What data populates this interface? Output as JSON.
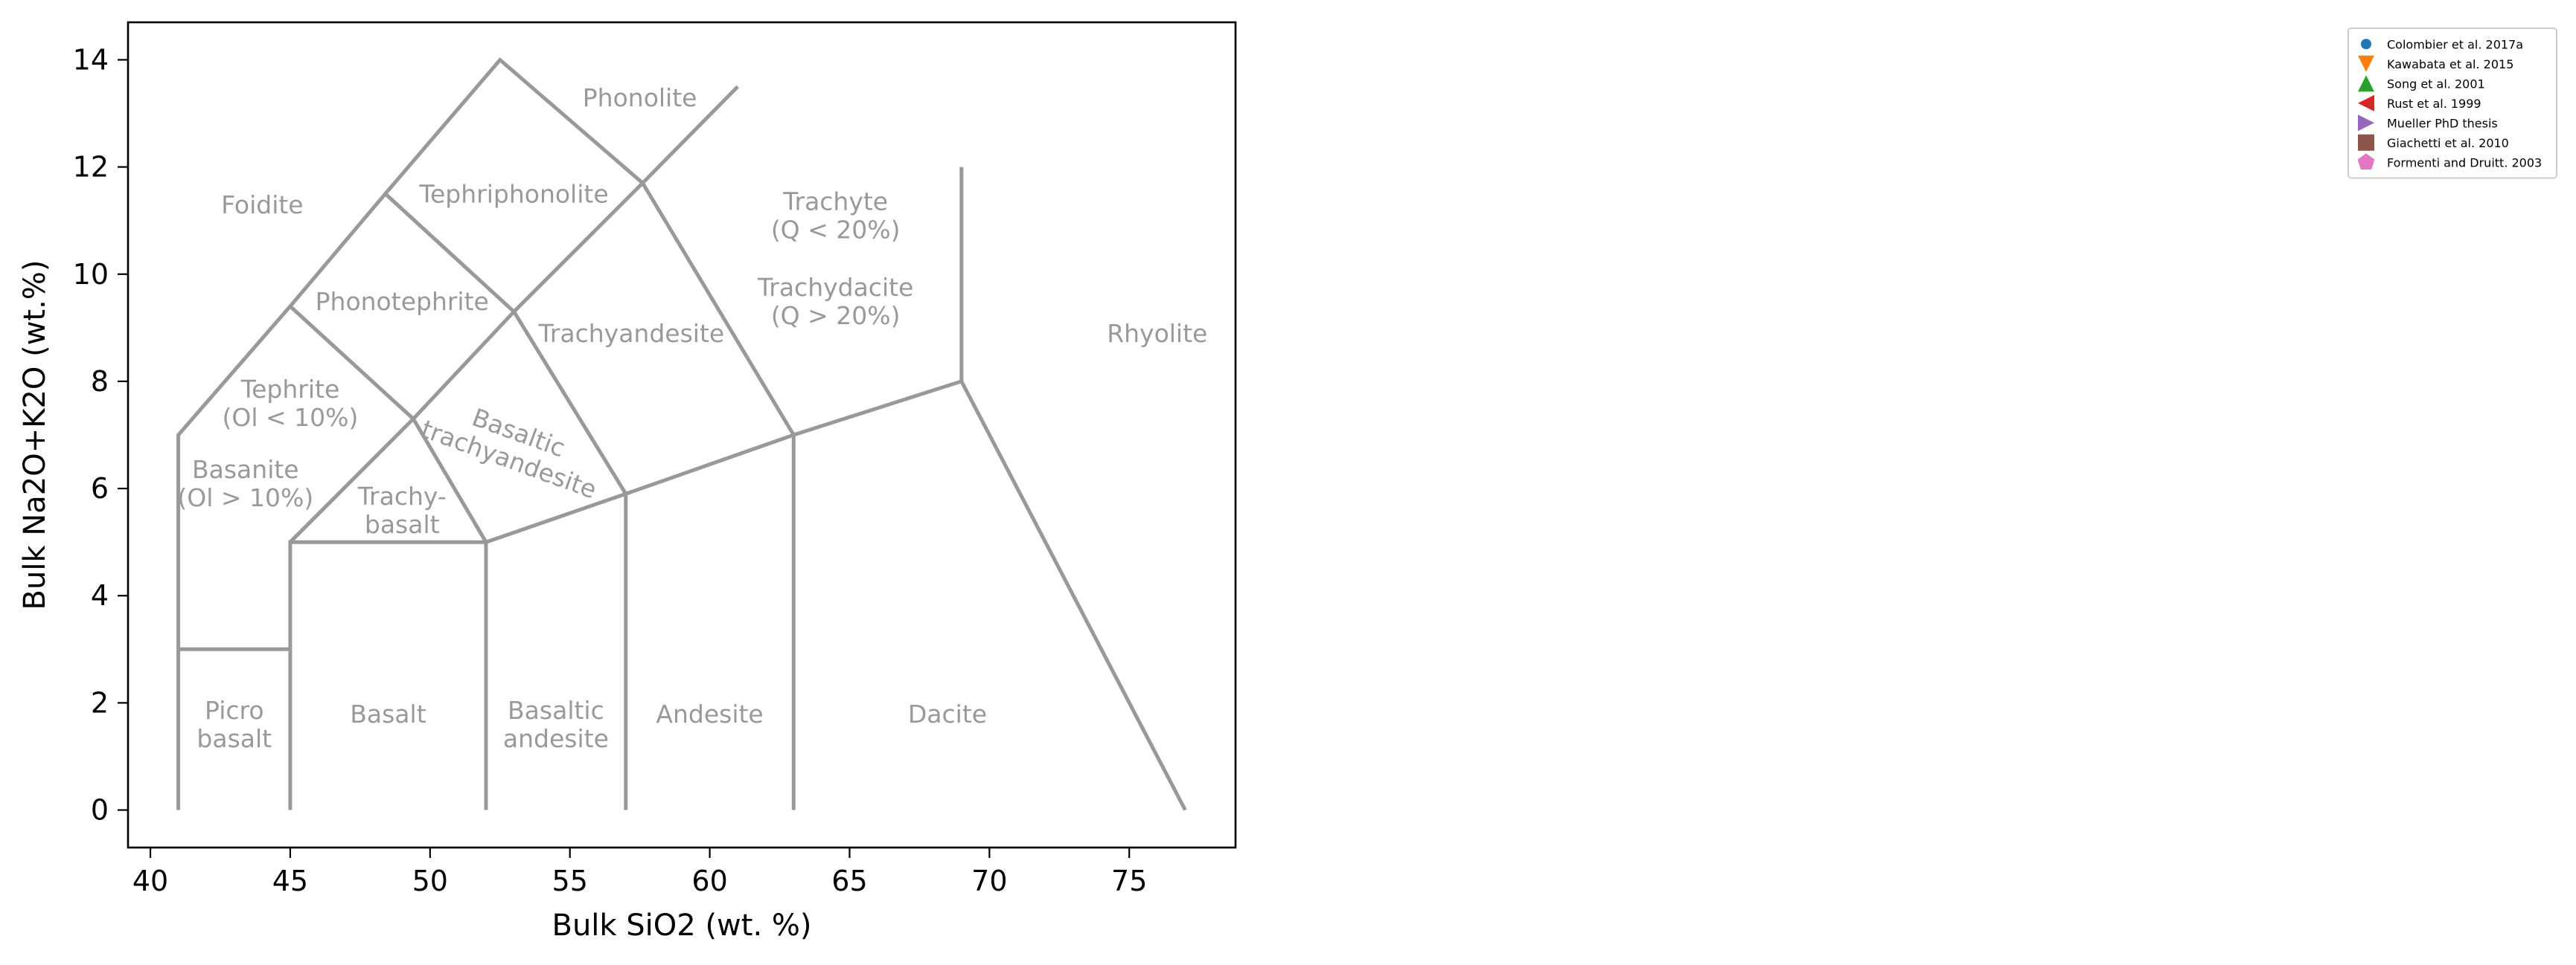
{
  "chart_data": {
    "type": "scatter",
    "title": "",
    "xlabel": "Bulk SiO2 (wt. %)",
    "ylabel": "Bulk Na2O+K2O (wt.%)",
    "xlim": [
      39.2,
      78.8
    ],
    "ylim": [
      -0.7,
      14.7
    ],
    "xticks": [
      40,
      45,
      50,
      55,
      60,
      65,
      70,
      75
    ],
    "yticks": [
      0,
      2,
      4,
      6,
      8,
      10,
      12,
      14
    ],
    "grid": false,
    "legend_position": "top-right (outside plot)",
    "series": [
      {
        "name": "Colombier et al. 2017a",
        "marker": "circle",
        "color": "#1f77b4",
        "points": []
      },
      {
        "name": "Kawabata et al. 2015",
        "marker": "triangle-down",
        "color": "#ff7f0e",
        "points": []
      },
      {
        "name": "Song et al. 2001",
        "marker": "triangle-up",
        "color": "#2ca02c",
        "points": []
      },
      {
        "name": "Rust et al. 1999",
        "marker": "triangle-left",
        "color": "#d62728",
        "points": []
      },
      {
        "name": "Mueller PhD thesis",
        "marker": "triangle-right",
        "color": "#9467bd",
        "points": []
      },
      {
        "name": "Giachetti et al. 2010",
        "marker": "square",
        "color": "#8c564b",
        "points": []
      },
      {
        "name": "Formenti and Druitt. 2003",
        "marker": "pentagon",
        "color": "#e377c2",
        "points": []
      }
    ],
    "tas_boundaries": [
      [
        [
          41,
          0
        ],
        [
          41,
          7
        ],
        [
          45,
          9.4
        ],
        [
          48.4,
          11.5
        ],
        [
          52.5,
          14
        ],
        [
          57.6,
          11.7
        ],
        [
          61,
          13.5
        ]
      ],
      [
        [
          41,
          3
        ],
        [
          45,
          3
        ]
      ],
      [
        [
          45,
          0
        ],
        [
          45,
          5
        ],
        [
          52,
          5
        ],
        [
          57,
          5.9
        ],
        [
          63,
          7
        ],
        [
          69,
          8
        ],
        [
          77,
          0
        ]
      ],
      [
        [
          52,
          0
        ],
        [
          52,
          5
        ]
      ],
      [
        [
          57,
          0
        ],
        [
          57,
          5.9
        ]
      ],
      [
        [
          63,
          0
        ],
        [
          63,
          7
        ]
      ],
      [
        [
          69,
          8
        ],
        [
          69,
          12
        ]
      ],
      [
        [
          45,
          5
        ],
        [
          49.4,
          7.3
        ],
        [
          53,
          9.3
        ],
        [
          57.6,
          11.7
        ],
        [
          63,
          7
        ]
      ],
      [
        [
          52,
          5
        ],
        [
          49.4,
          7.3
        ],
        [
          45,
          9.4
        ]
      ],
      [
        [
          57,
          5.9
        ],
        [
          53,
          9.3
        ],
        [
          48.4,
          11.5
        ]
      ]
    ],
    "region_labels": [
      {
        "lines": [
          "Foidite"
        ],
        "x": 44,
        "y": 11.3,
        "rotate": 0
      },
      {
        "lines": [
          "Phonolite"
        ],
        "x": 57.5,
        "y": 13.3,
        "rotate": 0
      },
      {
        "lines": [
          "Tephriphonolite"
        ],
        "x": 53,
        "y": 11.5,
        "rotate": 0
      },
      {
        "lines": [
          "Phonotephrite"
        ],
        "x": 49,
        "y": 9.5,
        "rotate": 0
      },
      {
        "lines": [
          "Trachyandesite"
        ],
        "x": 57.2,
        "y": 8.9,
        "rotate": 0
      },
      {
        "lines": [
          "Trachyte",
          "(Q < 20%)"
        ],
        "x": 64.5,
        "y": 11.1,
        "rotate": 0
      },
      {
        "lines": [
          "Trachydacite",
          "(Q > 20%)"
        ],
        "x": 64.5,
        "y": 9.5,
        "rotate": 0
      },
      {
        "lines": [
          "Rhyolite"
        ],
        "x": 76,
        "y": 8.9,
        "rotate": 0
      },
      {
        "lines": [
          "Tephrite",
          "(Ol < 10%)"
        ],
        "x": 45,
        "y": 7.6,
        "rotate": 0
      },
      {
        "lines": [
          "Basaltic",
          "trachyandesite"
        ],
        "x": 53,
        "y": 6.8,
        "rotate": 20
      },
      {
        "lines": [
          "Basanite",
          "(Ol > 10%)"
        ],
        "x": 43.4,
        "y": 6.1,
        "rotate": 0
      },
      {
        "lines": [
          "Trachy-",
          "basalt"
        ],
        "x": 49,
        "y": 5.6,
        "rotate": 0
      },
      {
        "lines": [
          "Picro",
          "basalt"
        ],
        "x": 43,
        "y": 1.6,
        "rotate": 0
      },
      {
        "lines": [
          "Basalt"
        ],
        "x": 48.5,
        "y": 1.8,
        "rotate": 0
      },
      {
        "lines": [
          "Basaltic",
          "andesite"
        ],
        "x": 54.5,
        "y": 1.6,
        "rotate": 0
      },
      {
        "lines": [
          "Andesite"
        ],
        "x": 60,
        "y": 1.8,
        "rotate": 0
      },
      {
        "lines": [
          "Dacite"
        ],
        "x": 68.5,
        "y": 1.8,
        "rotate": 0
      }
    ]
  }
}
